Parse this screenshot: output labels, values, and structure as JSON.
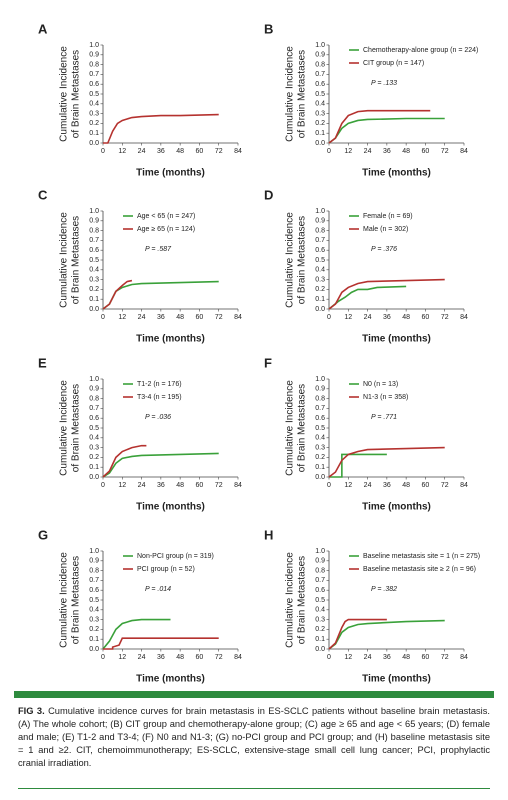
{
  "chart_data": [
    {
      "type": "line",
      "title": "A",
      "ylabel": [
        "Cumulative Incidence",
        "of Brain Metastases"
      ],
      "xlabel": "Time (months)",
      "xlim": [
        0,
        84
      ],
      "xticks": [
        0,
        12,
        24,
        36,
        48,
        60,
        72,
        84
      ],
      "ylim": [
        0,
        1
      ],
      "yticks": [
        {
          "value": 0,
          "label": "0.0"
        },
        0.1,
        0.2,
        0.3,
        0.4,
        0.5,
        0.6,
        0.7,
        0.8,
        0.9,
        {
          "value": 1,
          "label": "1.0"
        }
      ],
      "series": [
        {
          "color": "#b5322f",
          "x": [
            0,
            3,
            6,
            9,
            12,
            18,
            24,
            36,
            48,
            72
          ],
          "values": [
            0,
            0,
            0.12,
            0.2,
            0.23,
            0.26,
            0.27,
            0.28,
            0.28,
            0.29
          ]
        }
      ]
    },
    {
      "type": "line",
      "title": "B",
      "ylabel": [
        "Cumulative Incidence",
        "of Brain Metastases"
      ],
      "xlabel": "Time (months)",
      "annotation": "P = .133",
      "xlim": [
        0,
        84
      ],
      "xticks": [
        0,
        12,
        24,
        36,
        48,
        60,
        72,
        84
      ],
      "ylim": [
        0,
        1
      ],
      "yticks": [
        {
          "value": 0,
          "label": "0.0"
        },
        0.1,
        0.2,
        0.3,
        0.4,
        0.5,
        0.6,
        0.7,
        0.8,
        0.9,
        {
          "value": 1,
          "label": "1.0"
        }
      ],
      "series": [
        {
          "name": "Chemotherapy-alone group (n = 224)",
          "color": "#3aa13a",
          "x": [
            0,
            4,
            8,
            12,
            18,
            24,
            48,
            72
          ],
          "values": [
            0,
            0.05,
            0.15,
            0.2,
            0.23,
            0.24,
            0.25,
            0.25
          ]
        },
        {
          "name": "CIT group (n = 147)",
          "color": "#b5322f",
          "x": [
            0,
            4,
            8,
            12,
            18,
            24,
            48,
            63
          ],
          "values": [
            0,
            0.05,
            0.2,
            0.28,
            0.32,
            0.33,
            0.33,
            0.33
          ]
        }
      ]
    },
    {
      "type": "line",
      "title": "C",
      "ylabel": [
        "Cumulative Incidence",
        "of Brain Metastases"
      ],
      "xlabel": "Time (months)",
      "annotation": "P = .587",
      "xlim": [
        0,
        84
      ],
      "xticks": [
        0,
        12,
        24,
        36,
        48,
        60,
        72,
        84
      ],
      "ylim": [
        0,
        1
      ],
      "yticks": [
        {
          "value": 0,
          "label": "0.0"
        },
        0.1,
        0.2,
        0.3,
        0.4,
        0.5,
        0.6,
        0.7,
        0.8,
        0.9,
        {
          "value": 1,
          "label": "1.0"
        }
      ],
      "series": [
        {
          "name": "Age < 65 (n = 247)",
          "color": "#3aa13a",
          "x": [
            0,
            4,
            8,
            12,
            18,
            24,
            48,
            72
          ],
          "values": [
            0,
            0.05,
            0.18,
            0.22,
            0.25,
            0.26,
            0.27,
            0.28
          ]
        },
        {
          "name": "Age ≥ 65 (n = 124)",
          "color": "#b5322f",
          "x": [
            0,
            4,
            8,
            12,
            15,
            18
          ],
          "values": [
            0,
            0.05,
            0.18,
            0.24,
            0.28,
            0.29
          ]
        }
      ]
    },
    {
      "type": "line",
      "title": "D",
      "ylabel": [
        "Cumulative Incidence",
        "of Brain Metastases"
      ],
      "xlabel": "Time (months)",
      "annotation": "P = .376",
      "xlim": [
        0,
        84
      ],
      "xticks": [
        0,
        12,
        24,
        36,
        48,
        60,
        72,
        84
      ],
      "ylim": [
        0,
        1
      ],
      "yticks": [
        {
          "value": 0,
          "label": "0.0"
        },
        0.1,
        0.2,
        0.3,
        0.4,
        0.5,
        0.6,
        0.7,
        0.8,
        0.9,
        {
          "value": 1,
          "label": "1.0"
        }
      ],
      "series": [
        {
          "name": "Female (n = 69)",
          "color": "#3aa13a",
          "x": [
            0,
            6,
            10,
            14,
            18,
            24,
            30,
            48
          ],
          "values": [
            0,
            0.08,
            0.12,
            0.17,
            0.2,
            0.2,
            0.22,
            0.23
          ]
        },
        {
          "name": "Male (n = 302)",
          "color": "#b5322f",
          "x": [
            0,
            4,
            8,
            12,
            18,
            24,
            48,
            72
          ],
          "values": [
            0,
            0.05,
            0.17,
            0.22,
            0.26,
            0.28,
            0.29,
            0.3
          ]
        }
      ]
    },
    {
      "type": "line",
      "title": "E",
      "ylabel": [
        "Cumulative Incidence",
        "of Brain Metastases"
      ],
      "xlabel": "Time (months)",
      "annotation": "P = .036",
      "xlim": [
        0,
        84
      ],
      "xticks": [
        0,
        12,
        24,
        36,
        48,
        60,
        72,
        84
      ],
      "ylim": [
        0,
        1
      ],
      "yticks": [
        {
          "value": 0,
          "label": "0.0"
        },
        0.1,
        0.2,
        0.3,
        0.4,
        0.5,
        0.6,
        0.7,
        0.8,
        0.9,
        {
          "value": 1,
          "label": "1.0"
        }
      ],
      "series": [
        {
          "name": "T1-2 (n = 176)",
          "color": "#3aa13a",
          "x": [
            0,
            4,
            8,
            12,
            18,
            24,
            48,
            72
          ],
          "values": [
            0,
            0.04,
            0.14,
            0.19,
            0.21,
            0.22,
            0.23,
            0.24
          ]
        },
        {
          "name": "T3-4 (n = 195)",
          "color": "#b5322f",
          "x": [
            0,
            4,
            8,
            12,
            18,
            24,
            27
          ],
          "values": [
            0,
            0.06,
            0.2,
            0.26,
            0.3,
            0.32,
            0.32
          ]
        }
      ]
    },
    {
      "type": "line",
      "title": "F",
      "ylabel": [
        "Cumulative Incidence",
        "of Brain Metastases"
      ],
      "xlabel": "Time (months)",
      "annotation": "P = .771",
      "xlim": [
        0,
        84
      ],
      "xticks": [
        0,
        12,
        24,
        36,
        48,
        60,
        72,
        84
      ],
      "ylim": [
        0,
        1
      ],
      "yticks": [
        {
          "value": 0,
          "label": "0.0"
        },
        0.1,
        0.2,
        0.3,
        0.4,
        0.5,
        0.6,
        0.7,
        0.8,
        0.9,
        {
          "value": 1,
          "label": "1.0"
        }
      ],
      "series": [
        {
          "name": "N0 (n = 13)",
          "color": "#3aa13a",
          "x": [
            0,
            8,
            8,
            36
          ],
          "values": [
            0,
            0,
            0.23,
            0.23
          ]
        },
        {
          "name": "N1-3 (n = 358)",
          "color": "#b5322f",
          "x": [
            0,
            4,
            8,
            12,
            18,
            24,
            48,
            72
          ],
          "values": [
            0,
            0.05,
            0.17,
            0.23,
            0.26,
            0.28,
            0.29,
            0.3
          ]
        }
      ]
    },
    {
      "type": "line",
      "title": "G",
      "ylabel": [
        "Cumulative Incidence",
        "of Brain Metastases"
      ],
      "xlabel": "Time (months)",
      "annotation": "P = .014",
      "xlim": [
        0,
        84
      ],
      "xticks": [
        0,
        12,
        24,
        36,
        48,
        60,
        72,
        84
      ],
      "ylim": [
        0,
        1
      ],
      "yticks": [
        {
          "value": 0,
          "label": "0.0"
        },
        0.1,
        0.2,
        0.3,
        0.4,
        0.5,
        0.6,
        0.7,
        0.8,
        0.9,
        {
          "value": 1,
          "label": "1.0"
        }
      ],
      "series": [
        {
          "name": "Non-PCI group (n = 319)",
          "color": "#3aa13a",
          "x": [
            0,
            4,
            8,
            12,
            18,
            24,
            42
          ],
          "values": [
            0,
            0.08,
            0.2,
            0.26,
            0.29,
            0.3,
            0.3
          ]
        },
        {
          "name": "PCI group (n = 52)",
          "color": "#b5322f",
          "x": [
            0,
            6,
            6,
            10,
            12,
            72
          ],
          "values": [
            0,
            0,
            0.02,
            0.04,
            0.11,
            0.11
          ]
        }
      ]
    },
    {
      "type": "line",
      "title": "H",
      "ylabel": [
        "Cumulative Incidence",
        "of Brain Metastases"
      ],
      "xlabel": "Time (months)",
      "annotation": "P = .382",
      "xlim": [
        0,
        84
      ],
      "xticks": [
        0,
        12,
        24,
        36,
        48,
        60,
        72,
        84
      ],
      "ylim": [
        0,
        1
      ],
      "yticks": [
        {
          "value": 0,
          "label": "0.0"
        },
        0.1,
        0.2,
        0.3,
        0.4,
        0.5,
        0.6,
        0.7,
        0.8,
        0.9,
        {
          "value": 1,
          "label": "1.0"
        }
      ],
      "series": [
        {
          "name": "Baseline metastasis site = 1 (n = 275)",
          "color": "#3aa13a",
          "x": [
            0,
            4,
            8,
            12,
            18,
            24,
            48,
            72
          ],
          "values": [
            0,
            0.05,
            0.17,
            0.22,
            0.25,
            0.26,
            0.28,
            0.29
          ]
        },
        {
          "name": "Baseline metastasis site ≥ 2 (n = 96)",
          "color": "#b5322f",
          "x": [
            0,
            4,
            8,
            10,
            12,
            36
          ],
          "values": [
            0,
            0.06,
            0.22,
            0.28,
            0.3,
            0.3
          ]
        }
      ]
    }
  ],
  "caption": {
    "label": "FIG 3.",
    "text": "Cumulative incidence curves for brain metastasis in ES-SCLC patients without baseline brain metastasis. (A) The whole cohort; (B) CIT group and chemotherapy-alone group; (C) age ≥ 65 and age < 65 years; (D) female and male; (E) T1-2 and T3-4; (F) N0 and N1-3; (G) no-PCI group and PCI group; and (H) baseline metastasis site = 1 and ≥2. CIT, chemoimmunotherapy; ES-SCLC, extensive-stage small cell lung cancer; PCI, prophylactic cranial irradiation."
  }
}
